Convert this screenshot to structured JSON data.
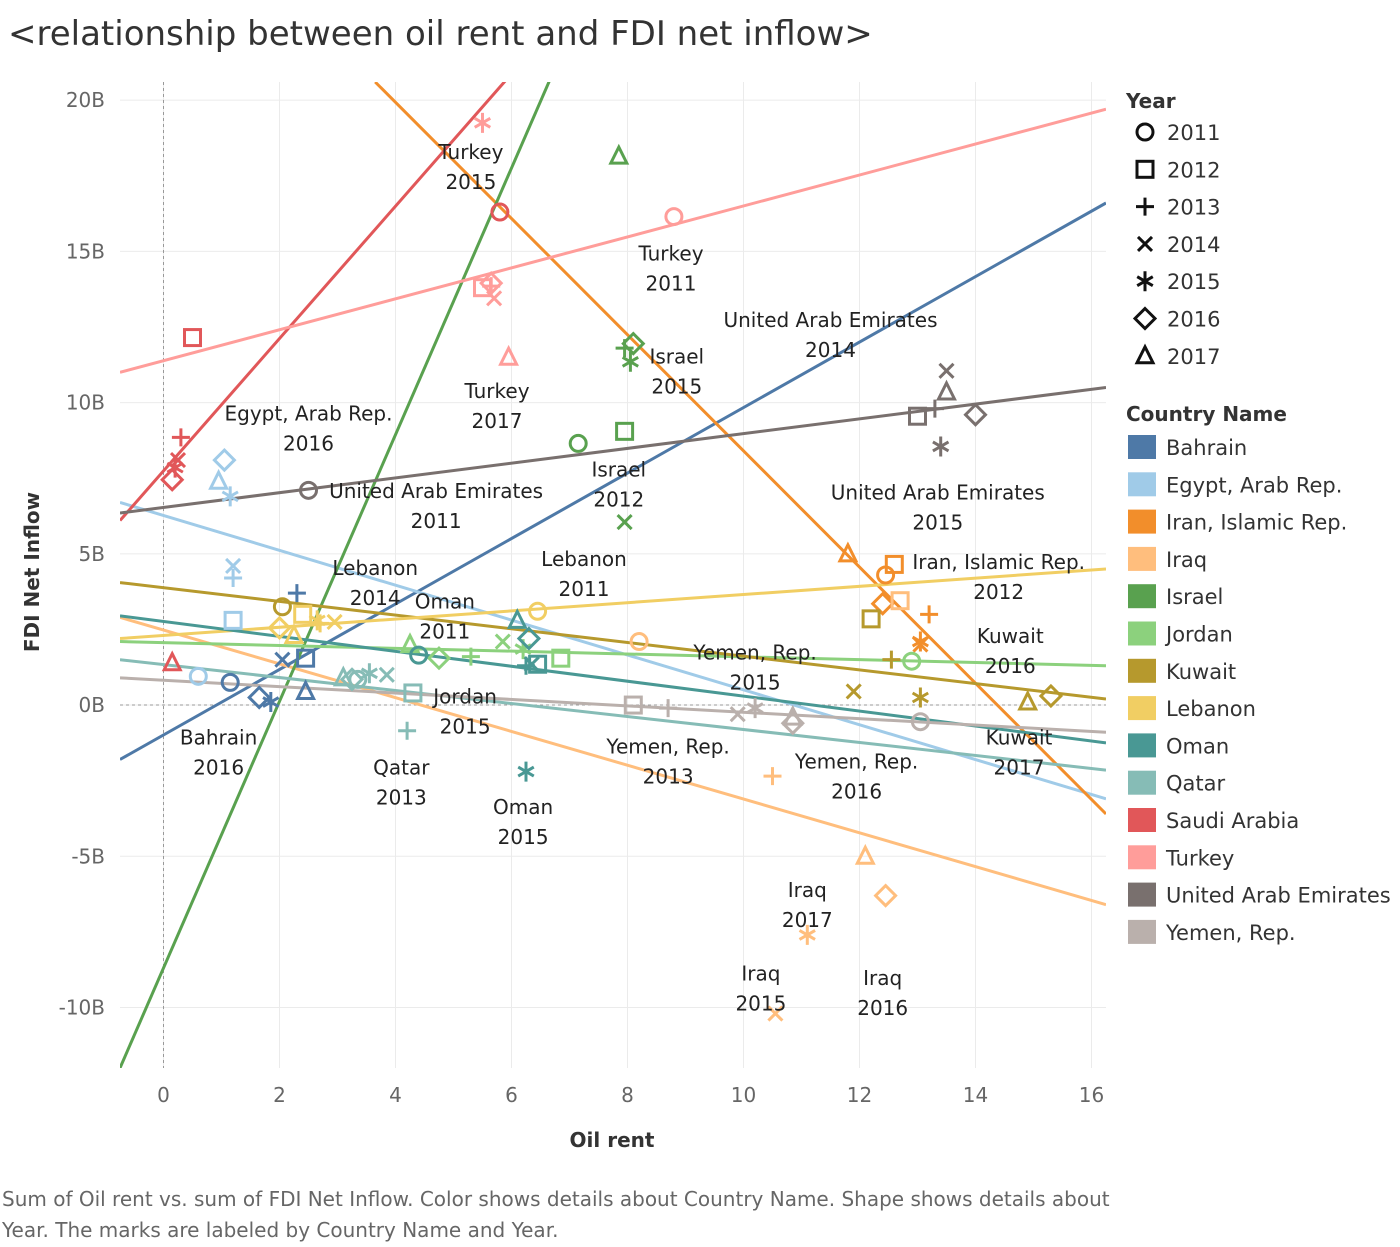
{
  "title": "<relationship between oil rent and FDI net inflow>",
  "caption": "Sum of Oil rent vs. sum of FDI Net Inflow.  Color shows details about Country Name.  Shape shows details about Year.  The marks are labeled by Country Name and Year.",
  "chart_data": {
    "type": "scatter",
    "xlabel": "Oil rent",
    "ylabel": "FDI Net Inflow",
    "xlim": [
      -0.75,
      16.25
    ],
    "ylim": [
      -12,
      20.6
    ],
    "x_ticks": [
      0,
      2,
      4,
      6,
      8,
      10,
      12,
      14,
      16
    ],
    "x_tick_labels": [
      "0",
      "2",
      "4",
      "6",
      "8",
      "10",
      "12",
      "14",
      "16"
    ],
    "y_ticks": [
      -10,
      -5,
      0,
      5,
      10,
      15,
      20
    ],
    "y_tick_labels": [
      "-10B",
      "-5B",
      "0B",
      "5B",
      "10B",
      "15B",
      "20B"
    ],
    "y_unit": "billions",
    "grid": true,
    "legend_placement": "right",
    "year_legend": {
      "title": "Year",
      "items": [
        {
          "label": "2011",
          "shape": "circle"
        },
        {
          "label": "2012",
          "shape": "square"
        },
        {
          "label": "2013",
          "shape": "plus"
        },
        {
          "label": "2014",
          "shape": "cross"
        },
        {
          "label": "2015",
          "shape": "asterisk"
        },
        {
          "label": "2016",
          "shape": "diamond"
        },
        {
          "label": "2017",
          "shape": "triangle"
        }
      ]
    },
    "country_legend": {
      "title": "Country Name",
      "items": [
        {
          "label": "Bahrain",
          "color": "#4e79a7"
        },
        {
          "label": "Egypt, Arab Rep.",
          "color": "#a0cbe8"
        },
        {
          "label": "Iran, Islamic Rep.",
          "color": "#f28e2b"
        },
        {
          "label": "Iraq",
          "color": "#ffbe7d"
        },
        {
          "label": "Israel",
          "color": "#59a14f"
        },
        {
          "label": "Jordan",
          "color": "#8cd17d"
        },
        {
          "label": "Kuwait",
          "color": "#b6992d"
        },
        {
          "label": "Lebanon",
          "color": "#f1ce63"
        },
        {
          "label": "Oman",
          "color": "#499894"
        },
        {
          "label": "Qatar",
          "color": "#86bcb6"
        },
        {
          "label": "Saudi Arabia",
          "color": "#e15759"
        },
        {
          "label": "Turkey",
          "color": "#ff9d9a"
        },
        {
          "label": "United Arab Emirates",
          "color": "#79706e"
        },
        {
          "label": "Yemen, Rep.",
          "color": "#bab0ac"
        }
      ]
    },
    "points": [
      {
        "c": 0,
        "y": 2011,
        "x": 1.15,
        "v": 0.75
      },
      {
        "c": 0,
        "y": 2012,
        "x": 2.45,
        "v": 1.55
      },
      {
        "c": 0,
        "y": 2013,
        "x": 2.3,
        "v": 3.7
      },
      {
        "c": 0,
        "y": 2014,
        "x": 2.05,
        "v": 1.5
      },
      {
        "c": 0,
        "y": 2015,
        "x": 1.85,
        "v": 0.1
      },
      {
        "c": 0,
        "y": 2016,
        "x": 1.65,
        "v": 0.25
      },
      {
        "c": 0,
        "y": 2017,
        "x": 2.45,
        "v": 0.45
      },
      {
        "c": 1,
        "y": 2011,
        "x": 0.6,
        "v": 0.95
      },
      {
        "c": 1,
        "y": 2012,
        "x": 1.2,
        "v": 2.8
      },
      {
        "c": 1,
        "y": 2013,
        "x": 1.2,
        "v": 4.2
      },
      {
        "c": 1,
        "y": 2014,
        "x": 1.2,
        "v": 4.6
      },
      {
        "c": 1,
        "y": 2015,
        "x": 1.15,
        "v": 6.9
      },
      {
        "c": 1,
        "y": 2016,
        "x": 1.05,
        "v": 8.1
      },
      {
        "c": 1,
        "y": 2017,
        "x": 0.95,
        "v": 7.4
      },
      {
        "c": 2,
        "y": 2011,
        "x": 12.45,
        "v": 4.3
      },
      {
        "c": 2,
        "y": 2012,
        "x": 12.6,
        "v": 4.65
      },
      {
        "c": 2,
        "y": 2013,
        "x": 13.2,
        "v": 3.0
      },
      {
        "c": 2,
        "y": 2014,
        "x": 13.05,
        "v": 2.0
      },
      {
        "c": 2,
        "y": 2015,
        "x": 13.05,
        "v": 2.1
      },
      {
        "c": 2,
        "y": 2016,
        "x": 12.4,
        "v": 3.35
      },
      {
        "c": 2,
        "y": 2017,
        "x": 11.8,
        "v": 5.0
      },
      {
        "c": 3,
        "y": 2011,
        "x": 8.2,
        "v": 2.1
      },
      {
        "c": 3,
        "y": 2012,
        "x": 12.7,
        "v": 3.45
      },
      {
        "c": 3,
        "y": 2013,
        "x": 10.5,
        "v": -2.35
      },
      {
        "c": 3,
        "y": 2014,
        "x": 10.55,
        "v": -10.2
      },
      {
        "c": 3,
        "y": 2015,
        "x": 11.1,
        "v": -7.6
      },
      {
        "c": 3,
        "y": 2016,
        "x": 12.45,
        "v": -6.3
      },
      {
        "c": 3,
        "y": 2017,
        "x": 12.1,
        "v": -5.0
      },
      {
        "c": 4,
        "y": 2011,
        "x": 7.15,
        "v": 8.65
      },
      {
        "c": 4,
        "y": 2012,
        "x": 7.95,
        "v": 9.05
      },
      {
        "c": 4,
        "y": 2013,
        "x": 7.95,
        "v": 11.8
      },
      {
        "c": 4,
        "y": 2014,
        "x": 7.95,
        "v": 6.05
      },
      {
        "c": 4,
        "y": 2015,
        "x": 8.05,
        "v": 11.35
      },
      {
        "c": 4,
        "y": 2016,
        "x": 8.1,
        "v": 11.95
      },
      {
        "c": 4,
        "y": 2017,
        "x": 7.85,
        "v": 18.15
      },
      {
        "c": 5,
        "y": 2011,
        "x": 12.9,
        "v": 1.45
      },
      {
        "c": 5,
        "y": 2012,
        "x": 6.85,
        "v": 1.55
      },
      {
        "c": 5,
        "y": 2013,
        "x": 5.3,
        "v": 1.6
      },
      {
        "c": 5,
        "y": 2014,
        "x": 5.85,
        "v": 2.1
      },
      {
        "c": 5,
        "y": 2015,
        "x": 6.2,
        "v": 1.85
      },
      {
        "c": 5,
        "y": 2016,
        "x": 4.75,
        "v": 1.55
      },
      {
        "c": 5,
        "y": 2017,
        "x": 4.25,
        "v": 2.0
      },
      {
        "c": 6,
        "y": 2011,
        "x": 2.05,
        "v": 3.25
      },
      {
        "c": 6,
        "y": 2012,
        "x": 12.2,
        "v": 2.85
      },
      {
        "c": 6,
        "y": 2013,
        "x": 12.55,
        "v": 1.5
      },
      {
        "c": 6,
        "y": 2014,
        "x": 11.9,
        "v": 0.45
      },
      {
        "c": 6,
        "y": 2015,
        "x": 13.05,
        "v": 0.25
      },
      {
        "c": 6,
        "y": 2016,
        "x": 15.3,
        "v": 0.3
      },
      {
        "c": 6,
        "y": 2017,
        "x": 14.9,
        "v": 0.1
      },
      {
        "c": 7,
        "y": 2011,
        "x": 6.45,
        "v": 3.1
      },
      {
        "c": 7,
        "y": 2012,
        "x": 2.4,
        "v": 3.0
      },
      {
        "c": 7,
        "y": 2013,
        "x": 2.7,
        "v": 2.7
      },
      {
        "c": 7,
        "y": 2014,
        "x": 2.95,
        "v": 2.75
      },
      {
        "c": 7,
        "y": 2015,
        "x": 2.65,
        "v": 2.8
      },
      {
        "c": 7,
        "y": 2016,
        "x": 2.0,
        "v": 2.55
      },
      {
        "c": 7,
        "y": 2017,
        "x": 2.25,
        "v": 2.3
      },
      {
        "c": 8,
        "y": 2011,
        "x": 4.4,
        "v": 1.65
      },
      {
        "c": 8,
        "y": 2012,
        "x": 6.45,
        "v": 1.35
      },
      {
        "c": 8,
        "y": 2013,
        "x": 6.25,
        "v": 1.3
      },
      {
        "c": 8,
        "y": 2014,
        "x": 6.35,
        "v": 1.35
      },
      {
        "c": 8,
        "y": 2015,
        "x": 6.25,
        "v": -2.2
      },
      {
        "c": 8,
        "y": 2016,
        "x": 6.3,
        "v": 2.2
      },
      {
        "c": 8,
        "y": 2017,
        "x": 6.1,
        "v": 2.8
      },
      {
        "c": 9,
        "y": 2011,
        "x": 3.35,
        "v": 0.85
      },
      {
        "c": 9,
        "y": 2012,
        "x": 4.3,
        "v": 0.4
      },
      {
        "c": 9,
        "y": 2013,
        "x": 4.2,
        "v": -0.85
      },
      {
        "c": 9,
        "y": 2014,
        "x": 3.85,
        "v": 1.0
      },
      {
        "c": 9,
        "y": 2015,
        "x": 3.55,
        "v": 1.05
      },
      {
        "c": 9,
        "y": 2016,
        "x": 3.25,
        "v": 0.85
      },
      {
        "c": 9,
        "y": 2017,
        "x": 3.1,
        "v": 0.9
      },
      {
        "c": 10,
        "y": 2011,
        "x": 5.8,
        "v": 16.3
      },
      {
        "c": 10,
        "y": 2012,
        "x": 0.5,
        "v": 12.15
      },
      {
        "c": 10,
        "y": 2013,
        "x": 0.3,
        "v": 8.85
      },
      {
        "c": 10,
        "y": 2014,
        "x": 0.25,
        "v": 8.1
      },
      {
        "c": 10,
        "y": 2015,
        "x": 0.2,
        "v": 7.85
      },
      {
        "c": 10,
        "y": 2016,
        "x": 0.15,
        "v": 7.45
      },
      {
        "c": 10,
        "y": 2017,
        "x": 0.15,
        "v": 1.4
      },
      {
        "c": 11,
        "y": 2011,
        "x": 8.8,
        "v": 16.15
      },
      {
        "c": 11,
        "y": 2012,
        "x": 5.5,
        "v": 13.8
      },
      {
        "c": 11,
        "y": 2013,
        "x": 5.65,
        "v": 13.85
      },
      {
        "c": 11,
        "y": 2014,
        "x": 5.7,
        "v": 13.45
      },
      {
        "c": 11,
        "y": 2015,
        "x": 5.5,
        "v": 19.25
      },
      {
        "c": 11,
        "y": 2016,
        "x": 5.65,
        "v": 13.95
      },
      {
        "c": 11,
        "y": 2017,
        "x": 5.95,
        "v": 11.5
      },
      {
        "c": 12,
        "y": 2011,
        "x": 2.5,
        "v": 7.1
      },
      {
        "c": 12,
        "y": 2012,
        "x": 13.0,
        "v": 9.55
      },
      {
        "c": 12,
        "y": 2013,
        "x": 13.3,
        "v": 9.8
      },
      {
        "c": 12,
        "y": 2014,
        "x": 13.5,
        "v": 11.05
      },
      {
        "c": 12,
        "y": 2015,
        "x": 13.4,
        "v": 8.55
      },
      {
        "c": 12,
        "y": 2016,
        "x": 14.0,
        "v": 9.6
      },
      {
        "c": 12,
        "y": 2017,
        "x": 13.5,
        "v": 10.35
      },
      {
        "c": 13,
        "y": 2011,
        "x": 13.05,
        "v": -0.55
      },
      {
        "c": 13,
        "y": 2012,
        "x": 8.1,
        "v": 0.0
      },
      {
        "c": 13,
        "y": 2013,
        "x": 8.7,
        "v": -0.1
      },
      {
        "c": 13,
        "y": 2014,
        "x": 9.9,
        "v": -0.3
      },
      {
        "c": 13,
        "y": 2015,
        "x": 10.2,
        "v": -0.1
      },
      {
        "c": 13,
        "y": 2016,
        "x": 10.85,
        "v": -0.6
      },
      {
        "c": 13,
        "y": 2017,
        "x": 10.85,
        "v": -0.4
      }
    ],
    "trend_lines": [
      {
        "c": 0,
        "x0": -0.75,
        "y0": -1.8,
        "x1": 16.25,
        "y1": 16.6
      },
      {
        "c": 1,
        "x0": -0.75,
        "y0": 6.7,
        "x1": 16.25,
        "y1": -3.1
      },
      {
        "c": 2,
        "x0": 3.65,
        "y0": 20.6,
        "x1": 16.25,
        "y1": -3.6
      },
      {
        "c": 3,
        "x0": -0.75,
        "y0": 2.9,
        "x1": 16.25,
        "y1": -6.6
      },
      {
        "c": 4,
        "x0": -0.75,
        "y0": -12.0,
        "x1": 11.5,
        "y1": 42.0
      },
      {
        "c": 5,
        "x0": -0.75,
        "y0": 2.1,
        "x1": 16.25,
        "y1": 1.3
      },
      {
        "c": 6,
        "x0": -0.75,
        "y0": 4.05,
        "x1": 16.25,
        "y1": 0.2
      },
      {
        "c": 7,
        "x0": -0.75,
        "y0": 2.2,
        "x1": 16.25,
        "y1": 4.5
      },
      {
        "c": 8,
        "x0": -0.75,
        "y0": 2.95,
        "x1": 16.25,
        "y1": -1.25
      },
      {
        "c": 9,
        "x0": -0.75,
        "y0": 1.5,
        "x1": 16.25,
        "y1": -2.15
      },
      {
        "c": 10,
        "x0": -0.75,
        "y0": 6.1,
        "x1": 12.0,
        "y1": 34.0
      },
      {
        "c": 11,
        "x0": -0.75,
        "y0": 11.0,
        "x1": 16.25,
        "y1": 19.7
      },
      {
        "c": 12,
        "x0": -0.75,
        "y0": 6.35,
        "x1": 16.25,
        "y1": 10.5
      },
      {
        "c": 13,
        "x0": -0.75,
        "y0": 0.9,
        "x1": 16.25,
        "y1": -0.9
      }
    ],
    "annotations": [
      {
        "lines": [
          "Turkey",
          "2015"
        ],
        "x": 5.3,
        "v": 18.05
      },
      {
        "lines": [
          "Turkey",
          "2011"
        ],
        "x": 8.75,
        "v": 14.7
      },
      {
        "lines": [
          "United Arab Emirates",
          "2014"
        ],
        "x": 11.5,
        "v": 12.5
      },
      {
        "lines": [
          "Israel",
          "2015"
        ],
        "x": 8.85,
        "v": 11.3
      },
      {
        "lines": [
          "Turkey",
          "2017"
        ],
        "x": 5.75,
        "v": 10.15
      },
      {
        "lines": [
          "Egypt, Arab Rep.",
          "2016"
        ],
        "x": 2.5,
        "v": 9.4
      },
      {
        "lines": [
          "Israel",
          "2012"
        ],
        "x": 7.85,
        "v": 7.55
      },
      {
        "lines": [
          "United Arab Emirates",
          "2011"
        ],
        "x": 4.7,
        "v": 6.85
      },
      {
        "lines": [
          "United Arab Emirates",
          "2015"
        ],
        "x": 13.35,
        "v": 6.8
      },
      {
        "lines": [
          "Lebanon",
          "2011"
        ],
        "x": 7.25,
        "v": 4.6
      },
      {
        "lines": [
          "Iran, Islamic Rep.",
          "2012"
        ],
        "x": 14.4,
        "v": 4.5
      },
      {
        "lines": [
          "Lebanon",
          "2014"
        ],
        "x": 3.65,
        "v": 4.3
      },
      {
        "lines": [
          "Oman",
          "2011"
        ],
        "x": 4.85,
        "v": 3.2
      },
      {
        "lines": [
          "Kuwait",
          "2016"
        ],
        "x": 14.6,
        "v": 2.05
      },
      {
        "lines": [
          "Yemen, Rep.",
          "2015"
        ],
        "x": 10.2,
        "v": 1.5
      },
      {
        "lines": [
          "Jordan",
          "2015"
        ],
        "x": 5.2,
        "v": 0.05
      },
      {
        "lines": [
          "Bahrain",
          "2016"
        ],
        "x": 0.95,
        "v": -1.3
      },
      {
        "lines": [
          "Yemen, Rep.",
          "2013"
        ],
        "x": 8.7,
        "v": -1.6
      },
      {
        "lines": [
          "Kuwait",
          "2017"
        ],
        "x": 14.75,
        "v": -1.3
      },
      {
        "lines": [
          "Yemen, Rep.",
          "2016"
        ],
        "x": 11.95,
        "v": -2.1
      },
      {
        "lines": [
          "Qatar",
          "2013"
        ],
        "x": 4.1,
        "v": -2.3
      },
      {
        "lines": [
          "Oman",
          "2015"
        ],
        "x": 6.2,
        "v": -3.6
      },
      {
        "lines": [
          "Iraq",
          "2017"
        ],
        "x": 11.1,
        "v": -6.35
      },
      {
        "lines": [
          "Iraq",
          "2015"
        ],
        "x": 10.3,
        "v": -9.1
      },
      {
        "lines": [
          "Iraq",
          "2016"
        ],
        "x": 12.4,
        "v": -9.25
      }
    ]
  }
}
